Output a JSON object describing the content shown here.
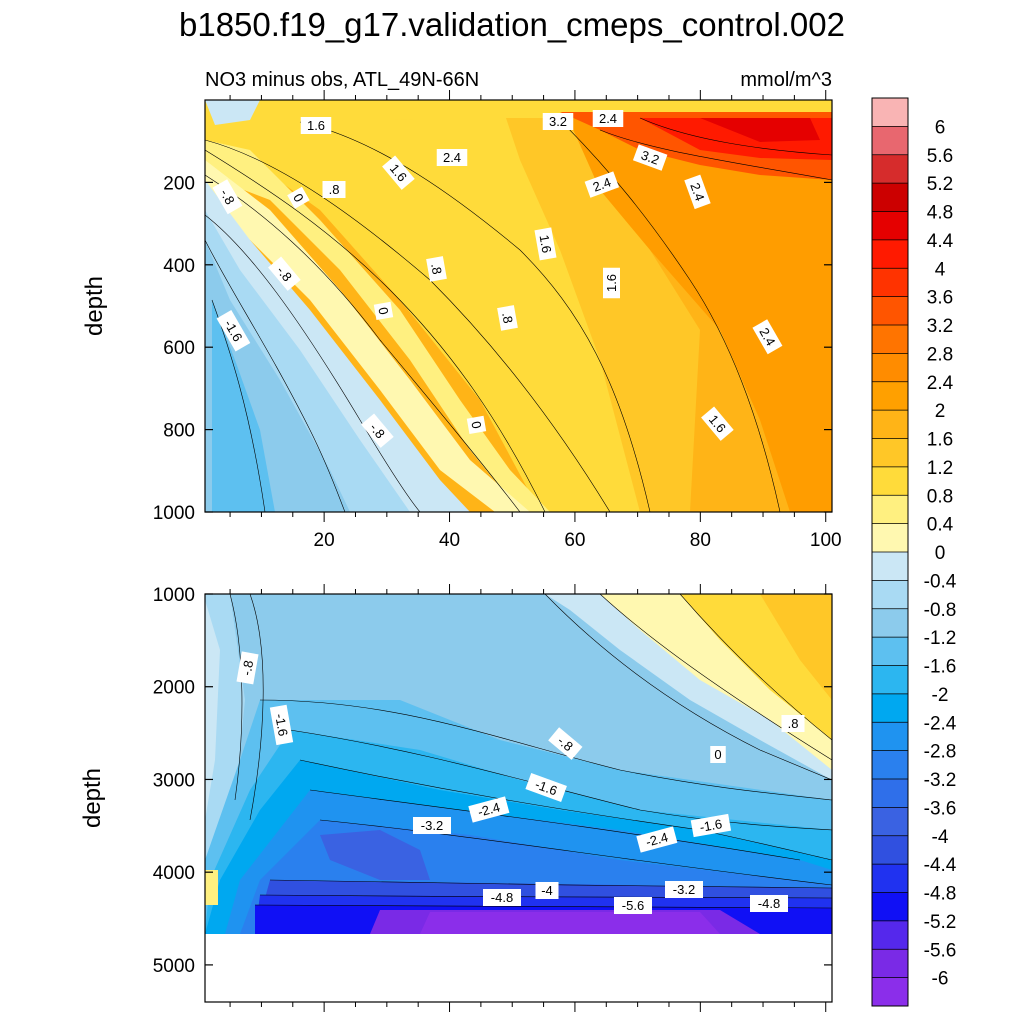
{
  "chart_data": {
    "type": "heatmap",
    "title": "b1850.f19_g17.validation_cmeps_control.002",
    "subtitle_left": "NO3 minus obs, ATL_49N-66N",
    "subtitle_right": "mmol/m^3",
    "ylabel": "depth",
    "xticks": [
      "20",
      "40",
      "60",
      "80",
      "100"
    ],
    "colorbar": {
      "levels": [
        "6",
        "5.6",
        "5.2",
        "4.8",
        "4.4",
        "4",
        "3.6",
        "3.2",
        "2.8",
        "2.4",
        "2",
        "1.6",
        "1.2",
        "0.8",
        "0.4",
        "0",
        "-0.4",
        "-0.8",
        "-1.2",
        "-1.6",
        "-2",
        "-2.4",
        "-2.8",
        "-3.2",
        "-3.6",
        "-4",
        "-4.4",
        "-4.8",
        "-5.2",
        "-5.6",
        "-6"
      ],
      "colors": [
        "#f9b4b4",
        "#e8676f",
        "#d62c2c",
        "#cc0000",
        "#e50000",
        "#ff1a00",
        "#ff3300",
        "#ff5500",
        "#ff7400",
        "#ff8c00",
        "#ffa000",
        "#ffb417",
        "#ffc727",
        "#ffdb3a",
        "#fff080",
        "#fff8b0",
        "#cbe7f5",
        "#a9daf3",
        "#8ccbec",
        "#5dc0f0",
        "#2cb6f0",
        "#00a8f0",
        "#1f93f0",
        "#2a80ee",
        "#2f6fea",
        "#3a62e2",
        "#3050e0",
        "#2032f0",
        "#1010f5",
        "#5528ec",
        "#7a2ae6",
        "#8b2eea"
      ]
    },
    "upper_panel": {
      "x_range": [
        1,
        101
      ],
      "depth_range": [
        0,
        1000
      ],
      "yticks": [
        "200",
        "400",
        "600",
        "800",
        "1000"
      ],
      "contour_labels": [
        "1.6",
        "3.2",
        "2.4",
        "2.4",
        "3.2",
        "1.6",
        ".8",
        "2.4",
        "2.4",
        "-.8",
        "0",
        "-.8",
        ".8",
        "1.6",
        "1.6",
        "-1.6",
        "0",
        ".8",
        "2.4",
        "-.8",
        "0",
        "1.6"
      ]
    },
    "lower_panel": {
      "x_range": [
        1,
        101
      ],
      "depth_range": [
        1000,
        5400
      ],
      "yticks": [
        "1000",
        "2000",
        "3000",
        "4000",
        "5000"
      ],
      "contour_labels": [
        "-.8",
        "-1.6",
        "-.8",
        "0",
        ".8",
        "-1.6",
        "-2.4",
        "-3.2",
        "-2.4",
        "-1.6",
        "-4.8",
        "-4",
        "-5.6",
        "-3.2",
        "-4.8"
      ]
    }
  }
}
